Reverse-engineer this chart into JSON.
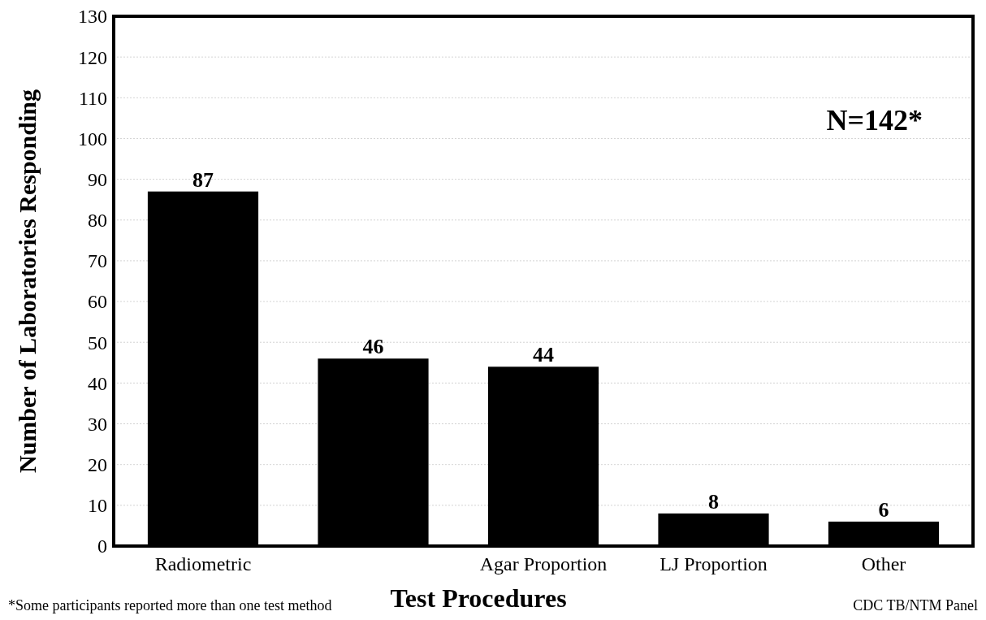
{
  "chart_data": {
    "type": "bar",
    "xlabel": "Test Procedures",
    "ylabel": "Number of Laboratories Responding",
    "categories": [
      "Radiometric",
      null,
      "Agar Proportion",
      "LJ Proportion",
      "Other"
    ],
    "values": [
      87,
      46,
      44,
      8,
      6
    ],
    "color": "#000000",
    "data_labels": true,
    "ylim": [
      0,
      130
    ],
    "yticks": [
      0,
      10,
      20,
      30,
      40,
      50,
      60,
      70,
      80,
      90,
      100,
      110,
      120,
      130
    ],
    "grid": "y",
    "annotations": [
      "N=142*",
      "*Some participants reported more than one test method",
      "CDC TB/NTM Panel"
    ]
  }
}
